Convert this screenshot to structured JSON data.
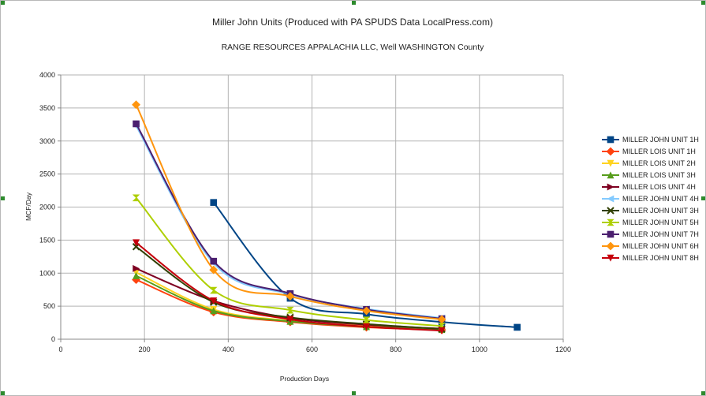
{
  "chart_data": {
    "type": "line",
    "title": "Miller John Units (Produced with PA SPUDS Data LocalPress.com)",
    "subtitle": "RANGE RESOURCES APPALACHIA LLC, Well  WASHINGTON County",
    "xlabel": "Production Days",
    "ylabel": "MCF/Day",
    "xlim": [
      0,
      1200
    ],
    "ylim": [
      0,
      4000
    ],
    "xticks": [
      0,
      200,
      400,
      600,
      800,
      1000,
      1200
    ],
    "yticks": [
      0,
      500,
      1000,
      1500,
      2000,
      2500,
      3000,
      3500,
      4000
    ],
    "grid": true,
    "legend_position": "right",
    "series": [
      {
        "name": "MILLER JOHN UNIT 1H",
        "color": "#004586",
        "marker": "square",
        "x": [
          365,
          548,
          730,
          910,
          1090
        ],
        "y": [
          2070,
          620,
          380,
          260,
          180
        ]
      },
      {
        "name": "MILLER LOIS UNIT 1H",
        "color": "#ff420e",
        "marker": "diamond",
        "x": [
          180,
          365,
          548,
          730,
          910
        ],
        "y": [
          900,
          410,
          260,
          180,
          140
        ]
      },
      {
        "name": "MILLER LOIS UNIT 2H",
        "color": "#ffd320",
        "marker": "triangle-down",
        "x": [
          180,
          365,
          548,
          730,
          910
        ],
        "y": [
          1010,
          450,
          280,
          200,
          150
        ]
      },
      {
        "name": "MILLER LOIS UNIT 3H",
        "color": "#579d1c",
        "marker": "triangle-up",
        "x": [
          180,
          365,
          548,
          730,
          910
        ],
        "y": [
          960,
          430,
          270,
          190,
          145
        ]
      },
      {
        "name": "MILLER LOIS UNIT 4H",
        "color": "#7e0021",
        "marker": "triangle-right",
        "x": [
          180,
          365,
          548,
          730,
          910
        ],
        "y": [
          1070,
          580,
          320,
          220,
          160
        ]
      },
      {
        "name": "MILLER JOHN UNIT 4H",
        "color": "#83caff",
        "marker": "triangle-left",
        "x": [
          180,
          365,
          548,
          730,
          910
        ],
        "y": [
          3230,
          1150,
          680,
          460,
          320
        ]
      },
      {
        "name": "MILLER JOHN UNIT 3H",
        "color": "#314004",
        "marker": "x",
        "x": [
          180,
          365,
          548,
          730,
          910
        ],
        "y": [
          1400,
          560,
          330,
          230,
          155
        ]
      },
      {
        "name": "MILLER JOHN UNIT 5H",
        "color": "#aecf00",
        "marker": "hourglass",
        "x": [
          180,
          365,
          548,
          730,
          910
        ],
        "y": [
          2140,
          740,
          440,
          290,
          200
        ]
      },
      {
        "name": "MILLER JOHN UNIT 7H",
        "color": "#4b1f6f",
        "marker": "square",
        "x": [
          180,
          365,
          548,
          730,
          910
        ],
        "y": [
          3260,
          1180,
          690,
          450,
          310
        ]
      },
      {
        "name": "MILLER JOHN UNIT 6H",
        "color": "#ff950e",
        "marker": "diamond",
        "x": [
          180,
          365,
          548,
          730,
          910
        ],
        "y": [
          3550,
          1050,
          650,
          430,
          300
        ]
      },
      {
        "name": "MILLER JOHN UNIT 8H",
        "color": "#c5000b",
        "marker": "triangle-down",
        "x": [
          180,
          365,
          548,
          730,
          910
        ],
        "y": [
          1460,
          580,
          300,
          190,
          130
        ]
      }
    ]
  }
}
